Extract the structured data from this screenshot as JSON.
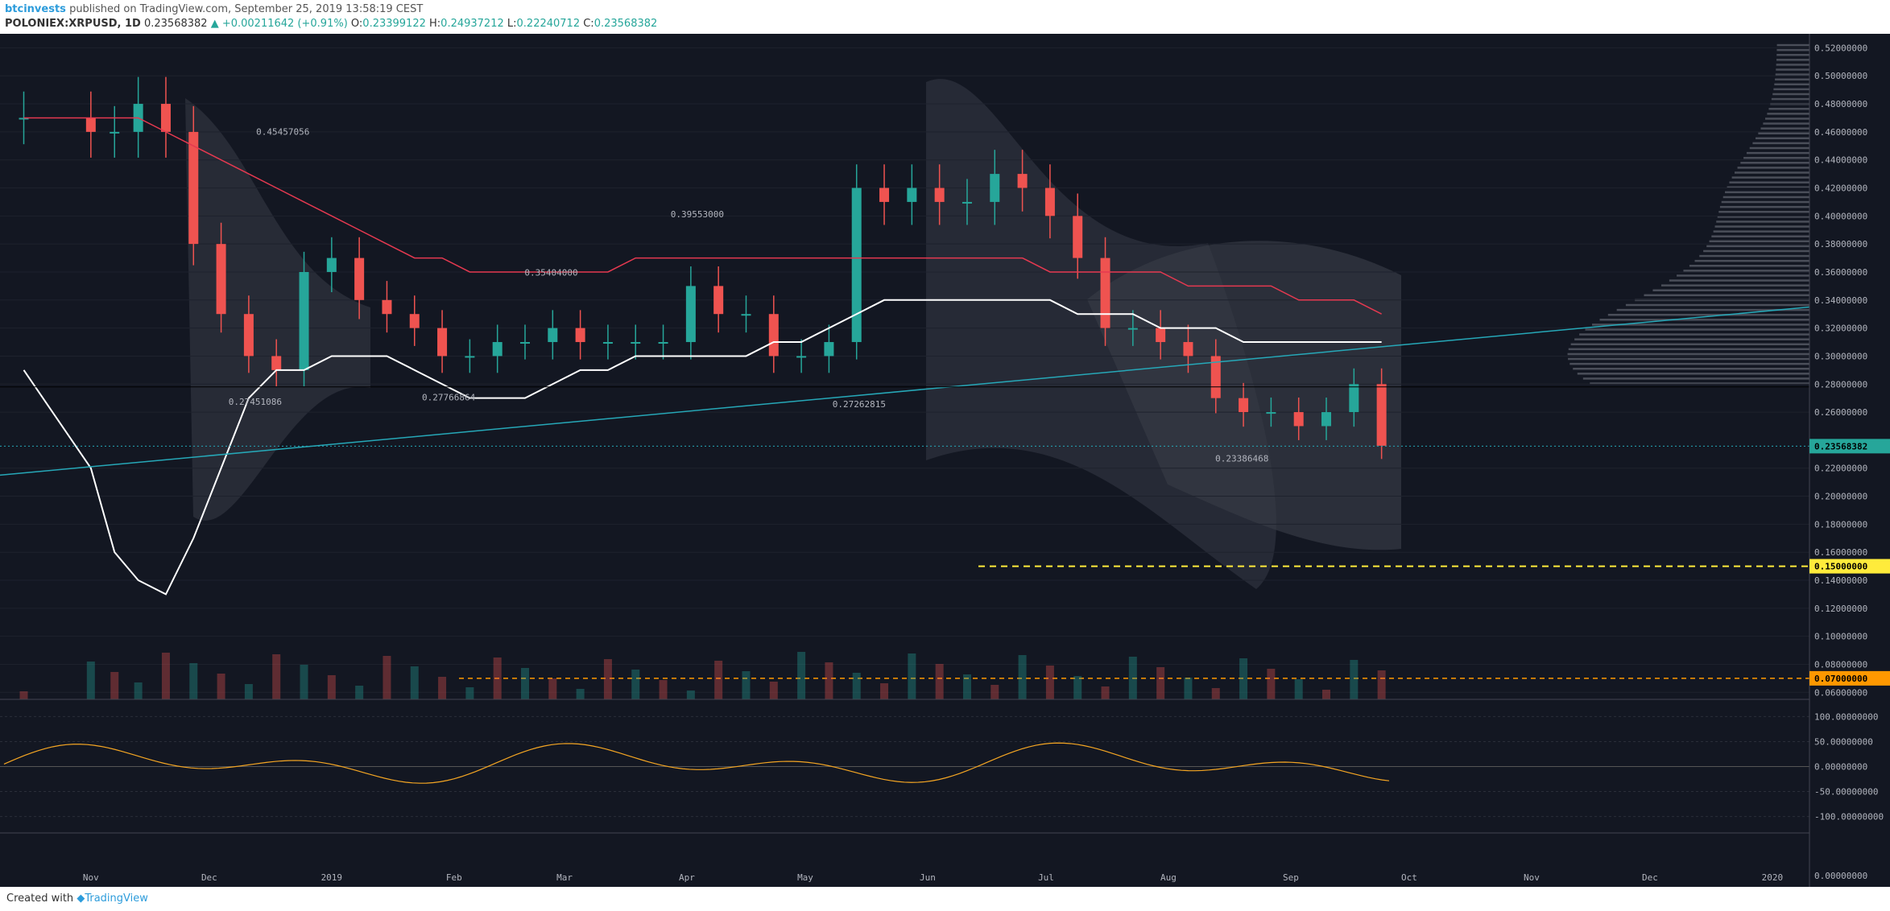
{
  "header": {
    "user": "btcinvests",
    "published": "published on TradingView.com, September 25, 2019 13:58:19 CEST",
    "symbol": "POLONIEX:XRPUSD, 1D",
    "last": "0.23568382",
    "change": "▲ +0.00211642 (+0.91%)",
    "o_label": "O:",
    "o": "0.23399122",
    "h_label": "H:",
    "h": "0.24937212",
    "l_label": "L:",
    "l": "0.22240712",
    "c_label": "C:",
    "c": "0.23568382"
  },
  "footer": {
    "made_with": "Created with",
    "brand": "TradingView"
  },
  "colors": {
    "bg": "#131722",
    "up": "#26a69a",
    "down": "#ef5350",
    "white_ma": "#ffffff",
    "red_ma": "#e53950",
    "yellow_ma": "#d4c13c",
    "green_ma": "#43a047",
    "trend": "#26a8b8",
    "accent_yellow": "#ffeb3b",
    "orange": "#ff9800"
  },
  "chart_data": {
    "type": "candlestick",
    "symbol": "POLONIEX:XRPUSD",
    "interval": "1D",
    "x_ticks": [
      "Nov",
      "Dec",
      "2019",
      "Feb",
      "Mar",
      "Apr",
      "May",
      "Jun",
      "Jul",
      "Aug",
      "Sep",
      "Oct",
      "Nov",
      "Dec",
      "2020"
    ],
    "price_axis": {
      "ticks": [
        "0.52000000",
        "0.50000000",
        "0.48000000",
        "0.46000000",
        "0.44000000",
        "0.42000000",
        "0.40000000",
        "0.38000000",
        "0.36000000",
        "0.34000000",
        "0.32000000",
        "0.30000000",
        "0.28000000",
        "0.26000000",
        "0.22000000",
        "0.20000000",
        "0.18000000",
        "0.16000000",
        "0.14000000",
        "0.12000000",
        "0.10000000",
        "0.08000000",
        "0.06000000"
      ],
      "ylim": [
        0.055,
        0.53
      ]
    },
    "price_tags": [
      {
        "label": "0.23568382",
        "value": 0.2357,
        "color": "#26a69a"
      },
      {
        "label": "0.15000000",
        "value": 0.15,
        "color": "#ffeb3b"
      },
      {
        "label": "0.07000000",
        "value": 0.07,
        "color": "#ff9800"
      }
    ],
    "annotations": [
      {
        "label": "0.45457056",
        "date": "2018-12-19",
        "value": 0.4546
      },
      {
        "label": "0.27451086",
        "date": "2018-12-12",
        "value": 0.2745
      },
      {
        "label": "0.27766864",
        "date": "2019-01-30",
        "value": 0.2777
      },
      {
        "label": "0.35404000",
        "date": "2019-02-25",
        "value": 0.354
      },
      {
        "label": "0.39553000",
        "date": "2019-04-03",
        "value": 0.3955
      },
      {
        "label": "0.27262815",
        "date": "2019-05-14",
        "value": 0.2726
      },
      {
        "label": "0.23386468",
        "date": "2019-08-19",
        "value": 0.2339
      }
    ],
    "series": [
      {
        "type": "candles",
        "x": [
          "2018-10-15",
          "2018-11-01",
          "2018-11-07",
          "2018-11-13",
          "2018-11-20",
          "2018-11-27",
          "2018-12-04",
          "2018-12-11",
          "2018-12-18",
          "2018-12-25",
          "2019-01-01",
          "2019-01-08",
          "2019-01-15",
          "2019-01-22",
          "2019-01-29",
          "2019-02-05",
          "2019-02-12",
          "2019-02-19",
          "2019-02-26",
          "2019-03-05",
          "2019-03-12",
          "2019-03-19",
          "2019-03-26",
          "2019-04-02",
          "2019-04-09",
          "2019-04-16",
          "2019-04-23",
          "2019-04-30",
          "2019-05-07",
          "2019-05-14",
          "2019-05-21",
          "2019-05-28",
          "2019-06-04",
          "2019-06-11",
          "2019-06-18",
          "2019-06-25",
          "2019-07-02",
          "2019-07-09",
          "2019-07-16",
          "2019-07-23",
          "2019-07-30",
          "2019-08-06",
          "2019-08-13",
          "2019-08-20",
          "2019-08-27",
          "2019-09-03",
          "2019-09-10",
          "2019-09-17",
          "2019-09-24"
        ],
        "close": [
          0.47,
          0.46,
          0.46,
          0.48,
          0.46,
          0.38,
          0.33,
          0.3,
          0.29,
          0.36,
          0.37,
          0.34,
          0.33,
          0.32,
          0.3,
          0.3,
          0.31,
          0.31,
          0.32,
          0.31,
          0.31,
          0.31,
          0.31,
          0.35,
          0.33,
          0.33,
          0.3,
          0.3,
          0.31,
          0.42,
          0.41,
          0.42,
          0.41,
          0.41,
          0.43,
          0.42,
          0.4,
          0.37,
          0.32,
          0.32,
          0.31,
          0.3,
          0.27,
          0.26,
          0.26,
          0.25,
          0.26,
          0.28,
          0.236
        ]
      },
      {
        "type": "line",
        "name": "MA white",
        "values": [
          0.29,
          0.22,
          0.16,
          0.14,
          0.13,
          0.17,
          0.22,
          0.27,
          0.29,
          0.29,
          0.3,
          0.3,
          0.3,
          0.29,
          0.28,
          0.27,
          0.27,
          0.27,
          0.28,
          0.29,
          0.29,
          0.3,
          0.3,
          0.3,
          0.3,
          0.3,
          0.31,
          0.31,
          0.32,
          0.33,
          0.34,
          0.34,
          0.34,
          0.34,
          0.34,
          0.34,
          0.34,
          0.33,
          0.33,
          0.33,
          0.32,
          0.32,
          0.32,
          0.31,
          0.31,
          0.31,
          0.31,
          0.31,
          0.31
        ]
      },
      {
        "type": "line",
        "name": "MA red",
        "values": [
          0.47,
          0.47,
          0.47,
          0.47,
          0.46,
          0.45,
          0.44,
          0.43,
          0.42,
          0.41,
          0.4,
          0.39,
          0.38,
          0.37,
          0.37,
          0.36,
          0.36,
          0.36,
          0.36,
          0.36,
          0.36,
          0.37,
          0.37,
          0.37,
          0.37,
          0.37,
          0.37,
          0.37,
          0.37,
          0.37,
          0.37,
          0.37,
          0.37,
          0.37,
          0.37,
          0.37,
          0.36,
          0.36,
          0.36,
          0.36,
          0.36,
          0.35,
          0.35,
          0.35,
          0.35,
          0.34,
          0.34,
          0.34,
          0.33
        ]
      }
    ],
    "indicator": {
      "ticks": [
        "100.00000000",
        "50.00000000",
        "0.00000000",
        "-50.00000000",
        "-100.00000000"
      ],
      "bottom_tick": "0.00000000"
    }
  }
}
